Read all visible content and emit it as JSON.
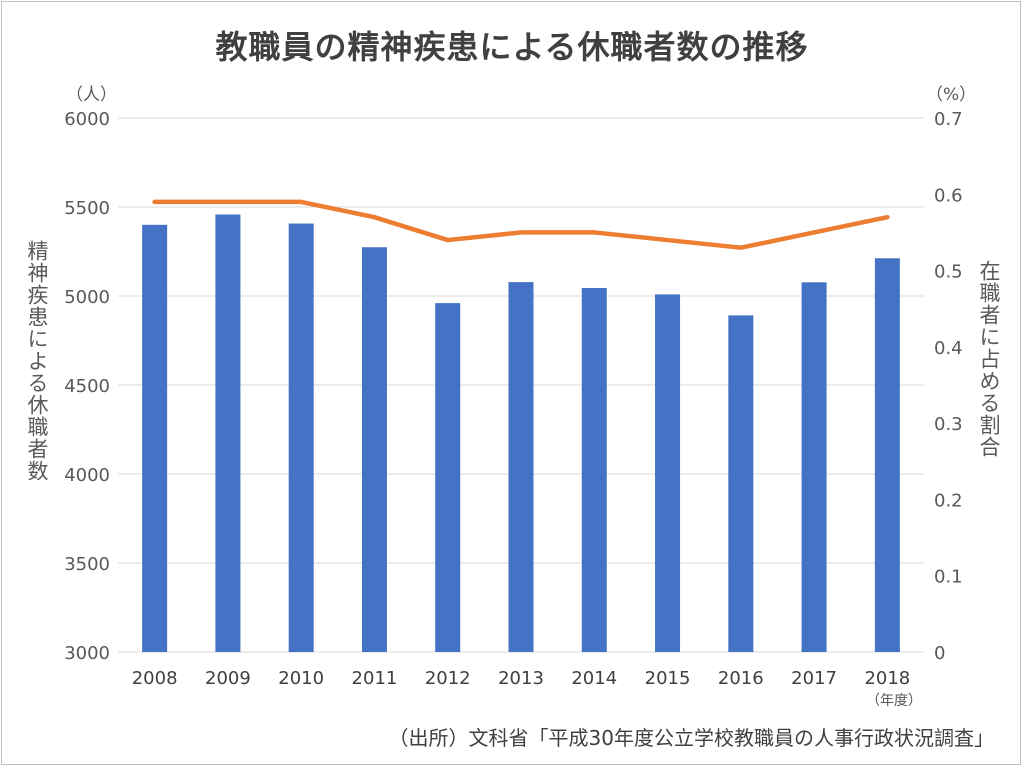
{
  "chart_data": {
    "type": "bar",
    "title": "教職員の精神疾患による休職者数の推移",
    "left_unit": "（人）",
    "right_unit": "（%）",
    "ylabel": "精神疾患による休職者数",
    "ylabel_right": "在職者に占める割合",
    "x_unit": "（年度）",
    "source": "（出所）文科省「平成30年度公立学校教職員の人事行政状況調査」",
    "categories": [
      "2008",
      "2009",
      "2010",
      "2011",
      "2012",
      "2013",
      "2014",
      "2015",
      "2016",
      "2017",
      "2018"
    ],
    "ylim": [
      3000,
      6000
    ],
    "yticks": [
      3000,
      3500,
      4000,
      4500,
      5000,
      5500,
      6000
    ],
    "y2lim": [
      0,
      0.7
    ],
    "y2ticks": [
      0,
      0.1,
      0.2,
      0.3,
      0.4,
      0.5,
      0.6,
      0.7
    ],
    "grid": true,
    "series": [
      {
        "type": "bar",
        "axis": "left",
        "color": "#4472C4",
        "values": [
          5400,
          5458,
          5407,
          5274,
          4960,
          5078,
          5045,
          5009,
          4891,
          5077,
          5212
        ]
      },
      {
        "type": "line",
        "axis": "right",
        "color": "#ED7D31",
        "values": [
          0.59,
          0.59,
          0.59,
          0.57,
          0.54,
          0.55,
          0.55,
          0.54,
          0.53,
          0.55,
          0.57
        ]
      }
    ]
  }
}
